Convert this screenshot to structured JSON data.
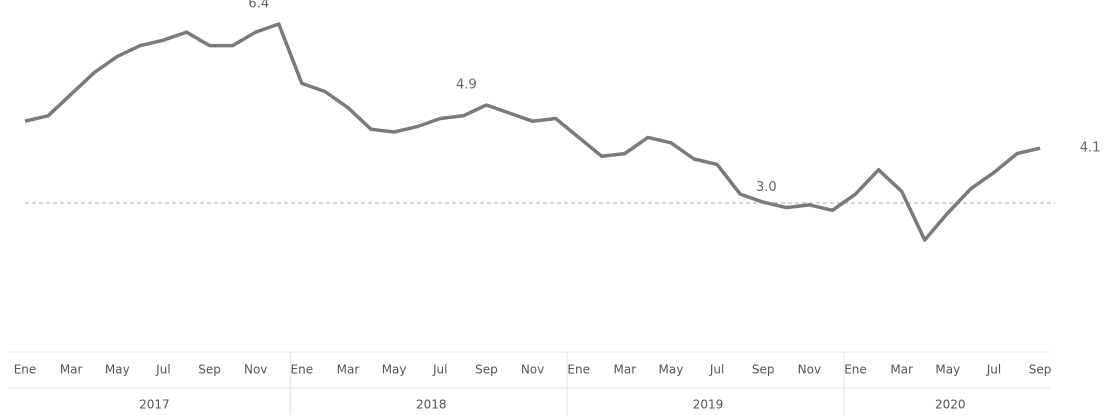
{
  "chart_data": {
    "type": "line",
    "categories": [
      "Ene",
      null,
      "Mar",
      null,
      "May",
      null,
      "Jul",
      null,
      "Sep",
      null,
      "Nov",
      null,
      "Ene",
      null,
      "Mar",
      null,
      "May",
      null,
      "Jul",
      null,
      "Sep",
      null,
      "Nov",
      null,
      "Ene",
      null,
      "Mar",
      null,
      "May",
      null,
      "Jul",
      null,
      "Sep",
      null,
      "Nov",
      null,
      "Ene",
      null,
      "Mar",
      null,
      "May",
      null,
      "Jul",
      null,
      "Sep"
    ],
    "x_groups": [
      "2017",
      "2018",
      "2019",
      "2020"
    ],
    "series": [
      {
        "name": null,
        "color": "#7a7a7a",
        "values": [
          4.6,
          4.7,
          5.1,
          5.5,
          5.8,
          6.0,
          6.1,
          6.25,
          6.0,
          6.0,
          6.25,
          6.4,
          5.3,
          5.15,
          4.85,
          4.45,
          4.4,
          4.5,
          4.65,
          4.7,
          4.9,
          4.75,
          4.6,
          4.65,
          4.3,
          3.95,
          4.0,
          4.3,
          4.2,
          3.9,
          3.8,
          3.25,
          3.1,
          3.0,
          3.05,
          2.95,
          3.25,
          3.7,
          3.3,
          2.4,
          2.9,
          3.35,
          3.65,
          4.0,
          4.1
        ],
        "value_labels": [
          null,
          null,
          null,
          null,
          null,
          null,
          null,
          null,
          null,
          null,
          null,
          "6.4",
          null,
          null,
          null,
          null,
          null,
          null,
          null,
          null,
          "4.9",
          null,
          null,
          null,
          null,
          null,
          null,
          null,
          null,
          null,
          null,
          null,
          null,
          "3.0",
          null,
          null,
          null,
          null,
          null,
          null,
          null,
          null,
          null,
          null,
          "4.1"
        ]
      }
    ],
    "ylim": [
      2.0,
      6.4
    ]
  }
}
